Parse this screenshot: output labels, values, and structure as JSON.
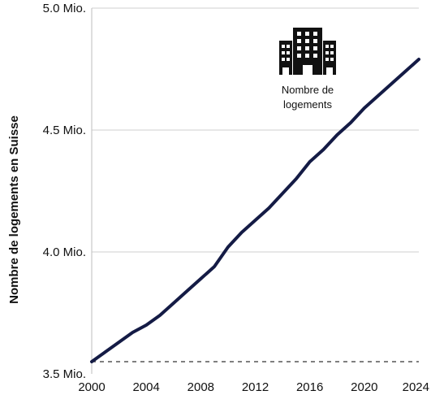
{
  "chart_data": {
    "type": "line",
    "title": "",
    "xlabel": "",
    "ylabel": "Nombre de logements en Suisse",
    "xlim": [
      2000,
      2024
    ],
    "ylim": [
      3.5,
      5.0
    ],
    "x_ticks": [
      2000,
      2004,
      2008,
      2012,
      2016,
      2020,
      2024
    ],
    "y_ticks": [
      {
        "value": 3.5,
        "label": "3.5 Mio."
      },
      {
        "value": 4.0,
        "label": "4.0 Mio."
      },
      {
        "value": 4.5,
        "label": "4.5 Mio."
      },
      {
        "value": 5.0,
        "label": "5.0 Mio."
      }
    ],
    "grid": "horizontal",
    "series": [
      {
        "color": "#141b45",
        "x": [
          2000,
          2001,
          2002,
          2003,
          2004,
          2005,
          2006,
          2007,
          2008,
          2009,
          2010,
          2011,
          2012,
          2013,
          2014,
          2015,
          2016,
          2017,
          2018,
          2019,
          2020,
          2021,
          2022,
          2023,
          2024
        ],
        "y": [
          3.55,
          3.59,
          3.63,
          3.67,
          3.7,
          3.74,
          3.79,
          3.84,
          3.89,
          3.94,
          4.02,
          4.08,
          4.13,
          4.18,
          4.24,
          4.3,
          4.37,
          4.42,
          4.48,
          4.53,
          4.59,
          4.64,
          4.69,
          4.74,
          4.79
        ]
      }
    ],
    "reference_line": {
      "y": 3.55,
      "style": "dashed",
      "color": "#333333"
    },
    "annotation": {
      "icon": "building-icon",
      "lines": [
        "Nombre de",
        "logements"
      ]
    }
  }
}
